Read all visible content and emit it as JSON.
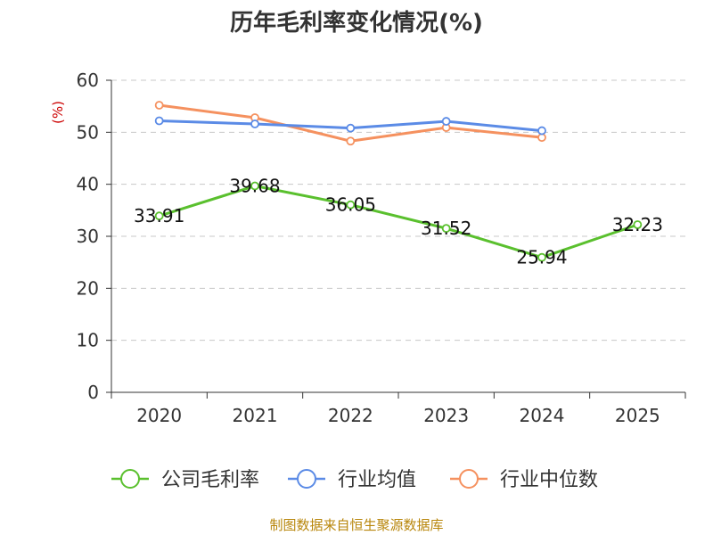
{
  "chart_data": {
    "type": "line",
    "title": "历年毛利率变化情况(%)",
    "ylabel": "(%)",
    "xlabel": "",
    "categories": [
      "2020",
      "2021",
      "2022",
      "2023",
      "2024",
      "2025"
    ],
    "y_ticks": [
      "0",
      "10",
      "20",
      "30",
      "40",
      "50",
      "60"
    ],
    "ylim": [
      0,
      60
    ],
    "grid": true,
    "legend_position": "bottom",
    "series": [
      {
        "name": "公司毛利率",
        "color": "#5ac02e",
        "values": [
          33.91,
          39.68,
          36.05,
          31.52,
          25.94,
          32.23
        ],
        "labels": [
          "33.91",
          "39.68",
          "36.05",
          "31.52",
          "25.94",
          "32.23"
        ]
      },
      {
        "name": "行业均值",
        "color": "#5b8be6",
        "values": [
          52.2,
          51.6,
          50.8,
          52.1,
          50.3,
          null
        ]
      },
      {
        "name": "行业中位数",
        "color": "#f5915f",
        "values": [
          55.2,
          52.8,
          48.3,
          50.9,
          49.0,
          null
        ]
      }
    ],
    "source": "制图数据来自恒生聚源数据库"
  }
}
